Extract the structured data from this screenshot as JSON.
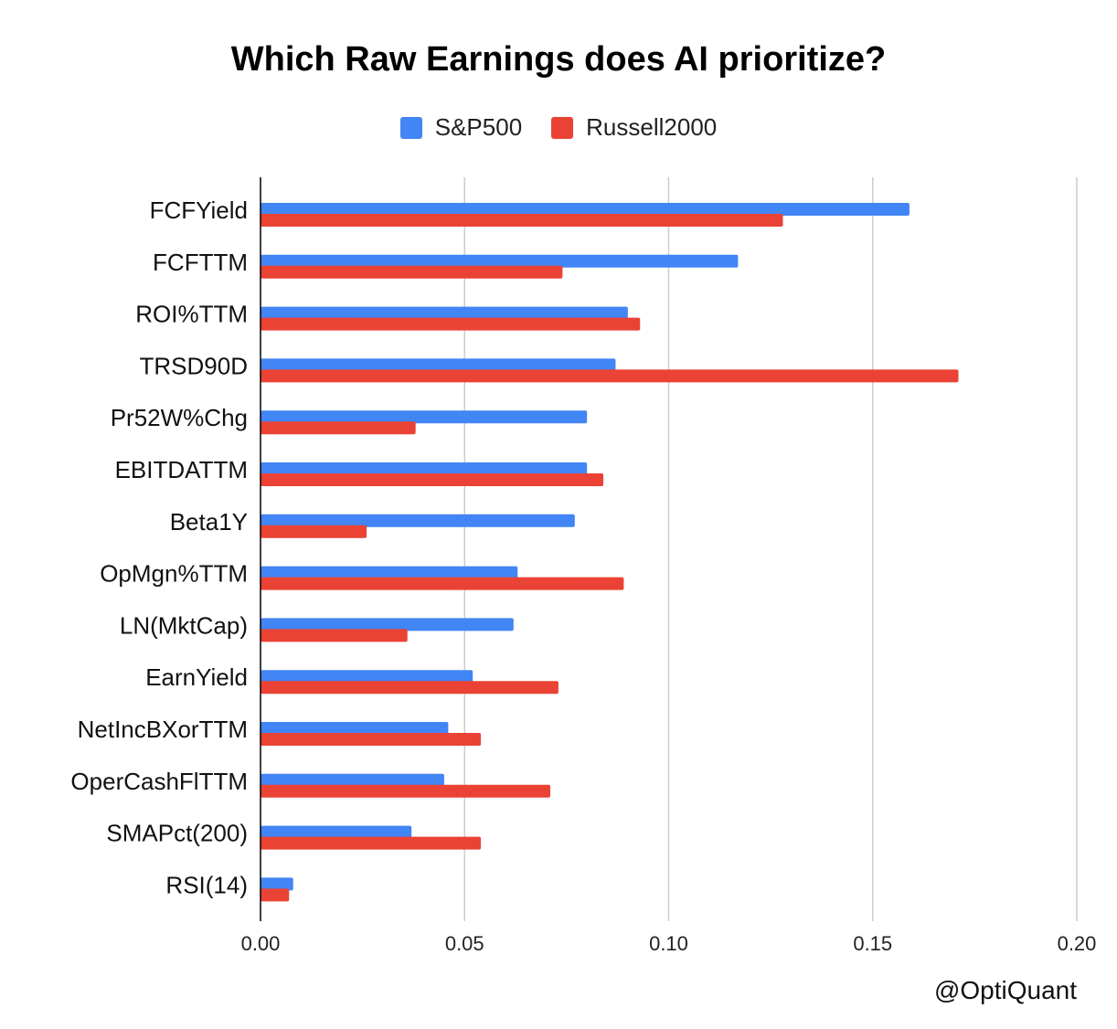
{
  "colors": {
    "sp500": "#4285f4",
    "russell": "#ea4335",
    "grid": "#cccccc",
    "axis": "#000000"
  },
  "chart_data": {
    "type": "bar",
    "orientation": "horizontal",
    "title": "Which Raw Earnings does AI prioritize?",
    "categories": [
      "FCFYield",
      "FCFTTM",
      "ROI%TTM",
      "TRSD90D",
      "Pr52W%Chg",
      "EBITDATTM",
      "Beta1Y",
      "OpMgn%TTM",
      "LN(MktCap)",
      "EarnYield",
      "NetIncBXorTTM",
      "OperCashFlTTM",
      "SMAPct(200)",
      "RSI(14)"
    ],
    "series": [
      {
        "name": "S&P500",
        "color": "#4285f4",
        "values": [
          0.159,
          0.117,
          0.09,
          0.087,
          0.08,
          0.08,
          0.077,
          0.063,
          0.062,
          0.052,
          0.046,
          0.045,
          0.037,
          0.008
        ]
      },
      {
        "name": "Russell2000",
        "color": "#ea4335",
        "values": [
          0.128,
          0.074,
          0.093,
          0.171,
          0.038,
          0.084,
          0.026,
          0.089,
          0.036,
          0.073,
          0.054,
          0.071,
          0.054,
          0.007
        ]
      }
    ],
    "xlim": [
      0,
      0.2
    ],
    "xticks": [
      "0.00",
      "0.05",
      "0.10",
      "0.15",
      "0.20"
    ],
    "grid": true,
    "legend": "top-center"
  },
  "watermark": "@OptiQuant"
}
